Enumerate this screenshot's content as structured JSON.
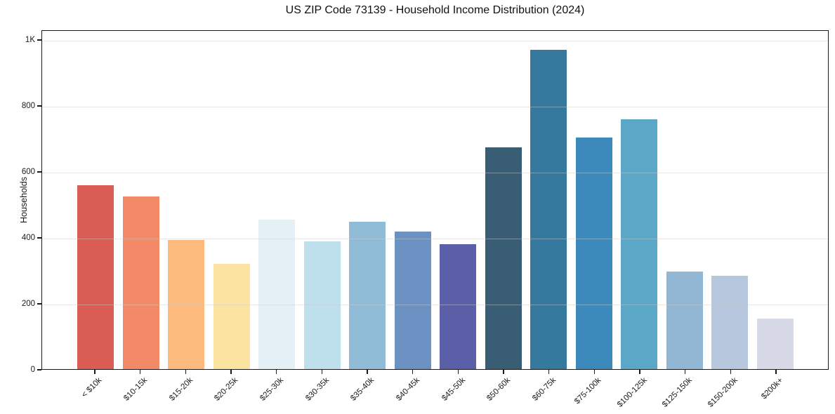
{
  "title": "US ZIP Code 73139 - Household Income Distribution (2024)",
  "chart_data": {
    "type": "bar",
    "title": "US ZIP Code 73139 - Household Income Distribution (2024)",
    "xlabel": "",
    "ylabel": "Households",
    "ylim": [
      0,
      1030
    ],
    "grid": "horizontal",
    "legend": "none",
    "categories": [
      "< $10k",
      "$10-15k",
      "$15-20k",
      "$20-25k",
      "$25-30k",
      "$30-35k",
      "$35-40k",
      "$40-45k",
      "$45-50k",
      "$50-60k",
      "$60-75k",
      "$75-100k",
      "$100-125k",
      "$125-150k",
      "$150-200k",
      "$200k+"
    ],
    "values": [
      560,
      525,
      393,
      320,
      455,
      390,
      449,
      418,
      380,
      675,
      972,
      705,
      760,
      297,
      285,
      153
    ],
    "bar_colors": [
      "#d95d55",
      "#f28a67",
      "#fcba7c",
      "#fce3a2",
      "#e4f0f5",
      "#bedfec",
      "#90bcd8",
      "#6c91c3",
      "#5a5fa8",
      "#3a5d76",
      "#36799e",
      "#3c8abc",
      "#5aa7c8",
      "#92b7d5",
      "#b7c7dd",
      "#d7d9e6"
    ],
    "yticks": [
      {
        "value": 0,
        "label": "0"
      },
      {
        "value": 200,
        "label": "200"
      },
      {
        "value": 400,
        "label": "400"
      },
      {
        "value": 600,
        "label": "600"
      },
      {
        "value": 800,
        "label": "800"
      },
      {
        "value": 1000,
        "label": "1K"
      }
    ]
  },
  "colors": {
    "background": "#ffffff",
    "spine": "#1a1a1a",
    "gridline": "#e6e6e6",
    "text": "#1a1a1a"
  }
}
